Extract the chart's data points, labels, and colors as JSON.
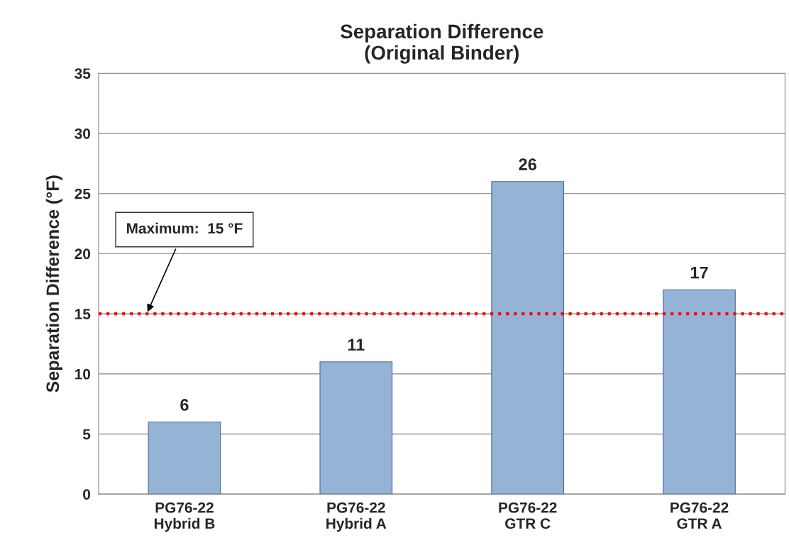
{
  "chart_data": {
    "type": "bar",
    "title": "Separation Difference\n(Original Binder)",
    "ylabel": "Separation Difference (°F)",
    "categories": [
      "PG76-22\nHybrid B",
      "PG76-22\nHybrid A",
      "PG76-22\nGTR C",
      "PG76-22\nGTR A"
    ],
    "values": [
      6,
      11,
      26,
      17
    ],
    "color": "#95b3d7",
    "data_labels": true,
    "ylim": [
      0,
      35
    ],
    "yticks": [
      0,
      5,
      10,
      15,
      20,
      25,
      30,
      35
    ],
    "grid": "y",
    "ref_lines": [
      {
        "axis": "y",
        "value": 15,
        "label": "Maximum:  15 °F",
        "color": "#ff0000",
        "line_style": "dotted"
      }
    ]
  }
}
